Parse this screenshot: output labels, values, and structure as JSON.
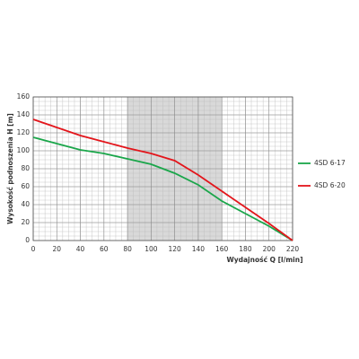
{
  "chart_data": {
    "type": "line",
    "xlabel": "Wydajność Q [l/min]",
    "ylabel": "Wysokość podnoszenia H [m]",
    "x": [
      0,
      20,
      40,
      60,
      80,
      100,
      120,
      140,
      160,
      180,
      200,
      220
    ],
    "series": [
      {
        "name": "4SD 6-17",
        "color": "#1aa64a",
        "values": [
          115,
          108,
          101,
          97,
          91,
          85,
          75,
          62,
          44,
          30,
          16,
          0
        ]
      },
      {
        "name": "4SD 6-20",
        "color": "#e3151b",
        "values": [
          135,
          126,
          117,
          110,
          103,
          97,
          89,
          73,
          55,
          37,
          19,
          0
        ]
      }
    ],
    "xlim": [
      0,
      220
    ],
    "ylim": [
      0,
      160
    ],
    "xticks": [
      0,
      20,
      40,
      60,
      80,
      100,
      120,
      140,
      160,
      180,
      200,
      220
    ],
    "yticks": [
      0,
      20,
      40,
      60,
      80,
      100,
      120,
      140,
      160
    ],
    "grid": true,
    "minor_grid": 5,
    "shaded_range": [
      80,
      160
    ],
    "shade_color": "#d9d9d9",
    "legend": "right"
  }
}
